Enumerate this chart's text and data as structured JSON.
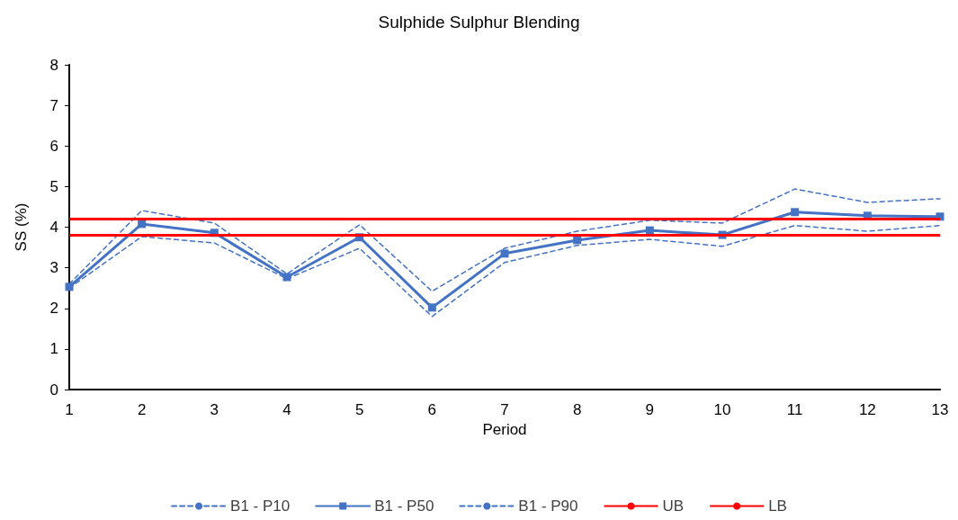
{
  "chart_data": {
    "type": "line",
    "title": "Sulphide Sulphur Blending",
    "xlabel": "Period",
    "ylabel": "SS (%)",
    "x": [
      1,
      2,
      3,
      4,
      5,
      6,
      7,
      8,
      9,
      10,
      11,
      12,
      13
    ],
    "xlim": [
      1,
      13
    ],
    "xticks": [
      1,
      2,
      3,
      4,
      5,
      6,
      7,
      8,
      9,
      10,
      11,
      12,
      13
    ],
    "ylim": [
      0,
      8
    ],
    "yticks": [
      0,
      1,
      2,
      3,
      4,
      5,
      6,
      7,
      8
    ],
    "grid": false,
    "legend": "bottom",
    "series": [
      {
        "name": "B1 - P10",
        "color": "#4472c4",
        "line_style": "dashed",
        "marker": "none",
        "values": [
          2.5,
          3.77,
          3.61,
          2.73,
          3.48,
          1.8,
          3.13,
          3.55,
          3.7,
          3.53,
          4.04,
          3.9,
          4.04
        ]
      },
      {
        "name": "B1 - P50",
        "color": "#4472c4",
        "line_style": "solid",
        "marker": "square",
        "values": [
          2.53,
          4.08,
          3.86,
          2.77,
          3.75,
          2.02,
          3.35,
          3.68,
          3.92,
          3.81,
          4.37,
          4.28,
          4.26
        ]
      },
      {
        "name": "B1 - P90",
        "color": "#4472c4",
        "line_style": "dashed",
        "marker": "none",
        "values": [
          2.6,
          4.41,
          4.1,
          2.85,
          4.06,
          2.42,
          3.48,
          3.9,
          4.17,
          4.1,
          4.94,
          4.61,
          4.7
        ]
      }
    ],
    "ref_lines": [
      {
        "axis": "y",
        "value": 4.2,
        "label": "UB",
        "color": "#ff0000"
      },
      {
        "axis": "y",
        "value": 3.8,
        "label": "LB",
        "color": "#ff0000"
      }
    ]
  }
}
